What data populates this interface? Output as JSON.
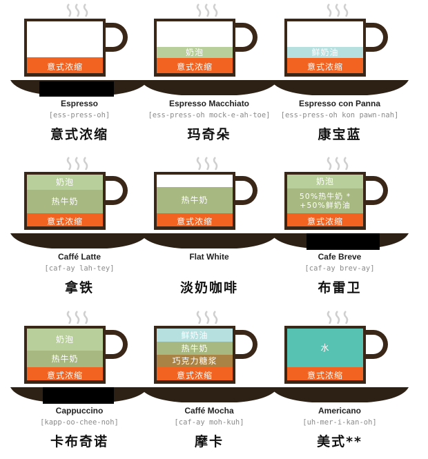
{
  "colors": {
    "espresso": "#f26220",
    "milk_foam": "#b9cf9b",
    "steamed_milk": "#a7b980",
    "whipped_cream": "#b6dfe0",
    "chocolate": "#a98246",
    "water": "#58c2b2",
    "cup": "#3a2718",
    "saucer": "#2d2116",
    "steam": "#cfcfcf"
  },
  "icons": {
    "steam": "steam-icon",
    "cup": "coffee-cup-icon",
    "saucer": "saucer-icon"
  },
  "drinks": [
    {
      "name": "Espresso",
      "pronunciation": "[ess-press-oh]",
      "chinese": "意式浓缩",
      "layers": [
        "意式浓缩"
      ]
    },
    {
      "name": "Espresso Macchiato",
      "pronunciation": "[ess-press-oh mock-e-ah-toe]",
      "chinese": "玛奇朵",
      "layers": [
        "奶泡",
        "意式浓缩"
      ]
    },
    {
      "name": "Espresso con Panna",
      "pronunciation": "[ess-press-oh kon pawn-nah]",
      "chinese": "康宝蓝",
      "layers": [
        "鲜奶油",
        "意式浓缩"
      ]
    },
    {
      "name": "Caffé Latte",
      "pronunciation": "[caf-ay lah-tey]",
      "chinese": "拿铁",
      "layers": [
        "奶泡",
        "热牛奶",
        "意式浓缩"
      ]
    },
    {
      "name": "Flat White",
      "pronunciation": "",
      "chinese": "淡奶咖啡",
      "layers": [
        "热牛奶",
        "意式浓缩"
      ]
    },
    {
      "name": "Cafe Breve",
      "pronunciation": "[caf-ay brev-ay]",
      "chinese": "布雷卫",
      "layers": [
        "奶泡",
        "50%热牛奶 *",
        "+50%鲜奶油",
        "意式浓缩"
      ]
    },
    {
      "name": "Cappuccino",
      "pronunciation": "[kapp-oo-chee-noh]",
      "chinese": "卡布奇诺",
      "layers": [
        "奶泡",
        "热牛奶",
        "意式浓缩"
      ]
    },
    {
      "name": "Caffé Mocha",
      "pronunciation": "[caf-ay moh-kuh]",
      "chinese": "摩卡",
      "layers": [
        "鲜奶油",
        "热牛奶",
        "巧克力糖浆",
        "意式浓缩"
      ]
    },
    {
      "name": "Americano",
      "pronunciation": "[uh-mer-i-kan-oh]",
      "chinese": "美式**",
      "layers": [
        "水",
        "意式浓缩"
      ]
    }
  ]
}
